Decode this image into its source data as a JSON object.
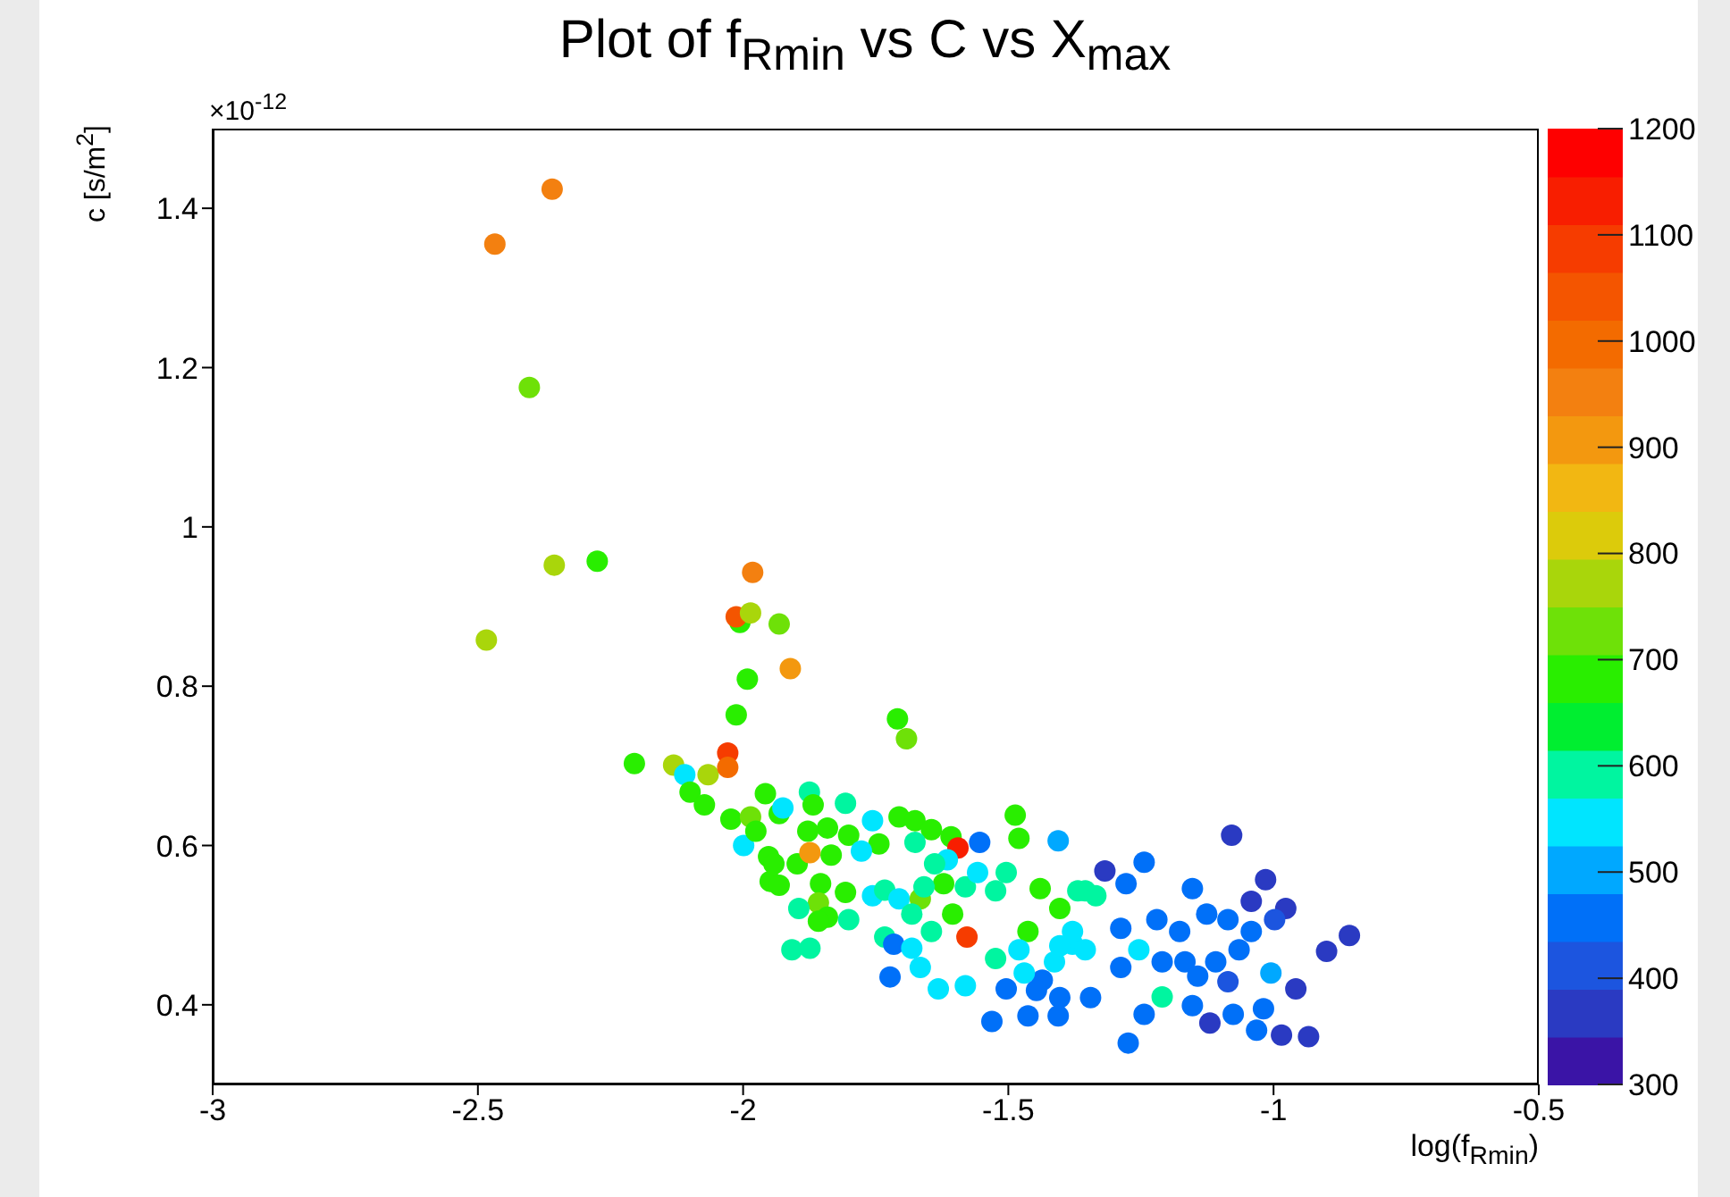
{
  "chart_data": {
    "type": "scatter",
    "title": "Plot of f$_{Rmin}$ vs C vs X$_{max}$",
    "xlabel": "log(f$_{Rmin}$)",
    "ylabel": "c [s/m$^{2}$]",
    "annotations": [
      "×10$^{-12}$"
    ],
    "xlim": [
      -3,
      -0.5
    ],
    "xticks": [
      -3,
      -2.5,
      -2,
      -1.5,
      -1,
      -0.5
    ],
    "ylim": [
      0.3,
      1.5
    ],
    "yticks": [
      0.4,
      0.6,
      0.8,
      1,
      1.2,
      1.4
    ],
    "marker": "circle",
    "clim": [
      300,
      1200
    ],
    "cticks": [
      300,
      400,
      500,
      600,
      700,
      800,
      900,
      1000,
      1100,
      1200
    ],
    "x": [
      -2.36,
      -2.468,
      -2.403,
      -2.356,
      -2.275,
      -2.484,
      -1.982,
      -2.006,
      -2.013,
      -1.986,
      -1.932,
      -1.911,
      -1.992,
      -2.013,
      -1.709,
      -1.692,
      -2.205,
      -2.131,
      -2.11,
      -2.1,
      -2.073,
      -2.066,
      -2.029,
      -2.029,
      -1.958,
      -1.999,
      -2.023,
      -1.986,
      -1.976,
      -1.932,
      -1.925,
      -1.875,
      -1.868,
      -1.807,
      -1.756,
      -1.841,
      -1.878,
      -1.801,
      -1.744,
      -1.952,
      -1.898,
      -1.874,
      -1.942,
      -1.834,
      -1.777,
      -1.706,
      -1.676,
      -1.645,
      -1.608,
      -1.595,
      -1.554,
      -1.487,
      -1.48,
      -1.406,
      -1.949,
      -1.932,
      -1.854,
      -1.807,
      -1.858,
      -1.895,
      -1.841,
      -1.858,
      -1.801,
      -1.756,
      -1.733,
      -1.706,
      -1.666,
      -1.622,
      -1.581,
      -1.659,
      -1.605,
      -1.578,
      -1.645,
      -1.682,
      -1.733,
      -1.716,
      -1.682,
      -1.908,
      -1.874,
      -1.723,
      -1.666,
      -1.632,
      -1.581,
      -1.531,
      -1.463,
      -1.406,
      -1.524,
      -1.504,
      -1.44,
      -1.403,
      -1.463,
      -1.524,
      -1.48,
      -1.413,
      -1.379,
      -1.436,
      -1.369,
      -1.615,
      -1.639,
      -1.558,
      -1.676,
      -1.318,
      -1.244,
      -1.079,
      -1.278,
      -1.153,
      -1.015,
      -1.042,
      -0.977,
      -0.857,
      -0.9,
      -1.005,
      -0.958,
      -0.934,
      -0.985,
      -1.032,
      -1.019,
      -1.12,
      -1.076,
      -1.153,
      -1.21,
      -1.244,
      -1.274,
      -1.254,
      -1.355,
      -1.335,
      -1.288,
      -1.22,
      -1.177,
      -1.126,
      -1.086,
      -1.065,
      -1.167,
      -1.109,
      -1.042,
      -0.998,
      -1.086,
      -1.143,
      -1.21,
      -1.355,
      -1.379,
      -1.288,
      -1.345,
      -1.403,
      -1.47,
      -1.447,
      -1.504,
      -1.403
    ],
    "values": [
      1.424,
      1.355,
      1.175,
      0.952,
      0.957,
      0.858,
      0.943,
      0.88,
      0.887,
      0.892,
      0.878,
      0.822,
      0.809,
      0.764,
      0.759,
      0.734,
      0.703,
      0.701,
      0.689,
      0.667,
      0.651,
      0.689,
      0.716,
      0.698,
      0.665,
      0.6,
      0.633,
      0.636,
      0.618,
      0.64,
      0.647,
      0.667,
      0.651,
      0.653,
      0.631,
      0.622,
      0.618,
      0.613,
      0.602,
      0.586,
      0.577,
      0.591,
      0.577,
      0.588,
      0.593,
      0.636,
      0.631,
      0.62,
      0.611,
      0.597,
      0.604,
      0.638,
      0.609,
      0.606,
      0.555,
      0.55,
      0.552,
      0.541,
      0.528,
      0.521,
      0.51,
      0.505,
      0.507,
      0.537,
      0.544,
      0.533,
      0.533,
      0.552,
      0.548,
      0.548,
      0.514,
      0.485,
      0.492,
      0.514,
      0.485,
      0.476,
      0.471,
      0.469,
      0.471,
      0.435,
      0.447,
      0.42,
      0.424,
      0.379,
      0.386,
      0.386,
      0.543,
      0.566,
      0.546,
      0.521,
      0.492,
      0.458,
      0.469,
      0.454,
      0.476,
      0.431,
      0.543,
      0.582,
      0.577,
      0.566,
      0.604,
      0.568,
      0.579,
      0.613,
      0.552,
      0.546,
      0.557,
      0.53,
      0.521,
      0.487,
      0.467,
      0.44,
      0.42,
      0.36,
      0.362,
      0.368,
      0.395,
      0.377,
      0.388,
      0.399,
      0.41,
      0.388,
      0.352,
      0.469,
      0.543,
      0.537,
      0.496,
      0.507,
      0.492,
      0.514,
      0.507,
      0.469,
      0.454,
      0.454,
      0.492,
      0.507,
      0.429,
      0.436,
      0.454,
      0.469,
      0.492,
      0.447,
      0.409,
      0.409,
      0.44,
      0.418,
      0.42,
      0.474
    ],
    "cvalues": [
      950,
      950,
      740,
      780,
      680,
      770,
      950,
      680,
      1040,
      780,
      740,
      910,
      680,
      680,
      680,
      720,
      680,
      760,
      540,
      680,
      680,
      770,
      1080,
      1000,
      680,
      545,
      680,
      740,
      680,
      680,
      545,
      600,
      680,
      600,
      545,
      680,
      680,
      680,
      680,
      680,
      680,
      920,
      680,
      680,
      545,
      680,
      680,
      680,
      680,
      1120,
      460,
      680,
      680,
      500,
      680,
      680,
      680,
      680,
      740,
      600,
      680,
      680,
      600,
      545,
      600,
      545,
      740,
      680,
      600,
      600,
      680,
      1080,
      600,
      600,
      600,
      460,
      545,
      600,
      600,
      460,
      545,
      545,
      545,
      460,
      460,
      460,
      600,
      600,
      680,
      680,
      680,
      600,
      545,
      545,
      545,
      460,
      600,
      545,
      600,
      545,
      600,
      380,
      460,
      380,
      460,
      460,
      380,
      380,
      380,
      380,
      380,
      500,
      380,
      380,
      380,
      460,
      460,
      380,
      460,
      460,
      600,
      460,
      460,
      545,
      600,
      600,
      460,
      460,
      460,
      460,
      460,
      460,
      460,
      460,
      460,
      420,
      420,
      460,
      460,
      545,
      545,
      460,
      460,
      460,
      545,
      460,
      460,
      545
    ]
  }
}
